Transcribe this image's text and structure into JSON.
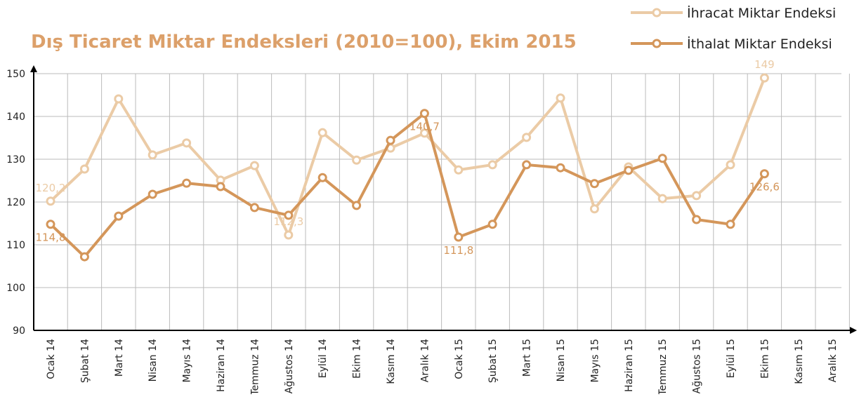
{
  "chart_data": {
    "type": "line",
    "title": "Dış Ticaret Miktar Endeksleri (2010=100), Ekim 2015",
    "title_color": "#dca06a",
    "categories": [
      "Ocak 14",
      "Şubat 14",
      "Mart 14",
      "Nisan 14",
      "Mayıs 14",
      "Haziran 14",
      "Temmuz 14",
      "Ağustos 14",
      "Eylül 14",
      "Ekim 14",
      "Kasım 14",
      "Aralık 14",
      "Ocak 15",
      "Şubat 15",
      "Mart 15",
      "Nisan 15",
      "Mayıs 15",
      "Haziran 15",
      "Temmuz 15",
      "Ağustos 15",
      "Eylül 15",
      "Ekim 15",
      "Kasım 15",
      "Aralık 15"
    ],
    "series": [
      {
        "name": "İhracat Miktar Endeksi",
        "color": "#ebcba6",
        "values": [
          120.2,
          127.7,
          144.1,
          131,
          133.8,
          125.1,
          128.5,
          112.3,
          136.2,
          129.8,
          132.6,
          136.1,
          127.5,
          128.7,
          135.1,
          144.3,
          118.4,
          128.2,
          120.8,
          121.5,
          128.7,
          149,
          null,
          null
        ],
        "value_labels": [
          "120,2",
          null,
          null,
          null,
          null,
          null,
          null,
          "112,3",
          null,
          null,
          null,
          null,
          null,
          null,
          null,
          null,
          null,
          null,
          null,
          null,
          null,
          "149",
          null,
          null
        ]
      },
      {
        "name": "İthalat Miktar Endeksi",
        "color": "#d4965a",
        "values": [
          114.8,
          107.2,
          116.7,
          121.8,
          124.4,
          123.6,
          118.7,
          116.9,
          125.7,
          119.2,
          134.4,
          140.7,
          111.8,
          114.8,
          128.7,
          128.0,
          124.3,
          127.4,
          130.2,
          115.9,
          114.8,
          126.6,
          null,
          null
        ],
        "value_labels": [
          "114,8",
          null,
          null,
          null,
          null,
          null,
          null,
          null,
          null,
          null,
          null,
          "140,7",
          "111,8",
          null,
          null,
          null,
          null,
          null,
          null,
          null,
          null,
          "126,6",
          null,
          null
        ]
      }
    ],
    "ylim": [
      90,
      150
    ],
    "yticks": [
      90,
      100,
      110,
      120,
      130,
      140,
      150
    ],
    "grid": true,
    "legend": "top-right"
  }
}
